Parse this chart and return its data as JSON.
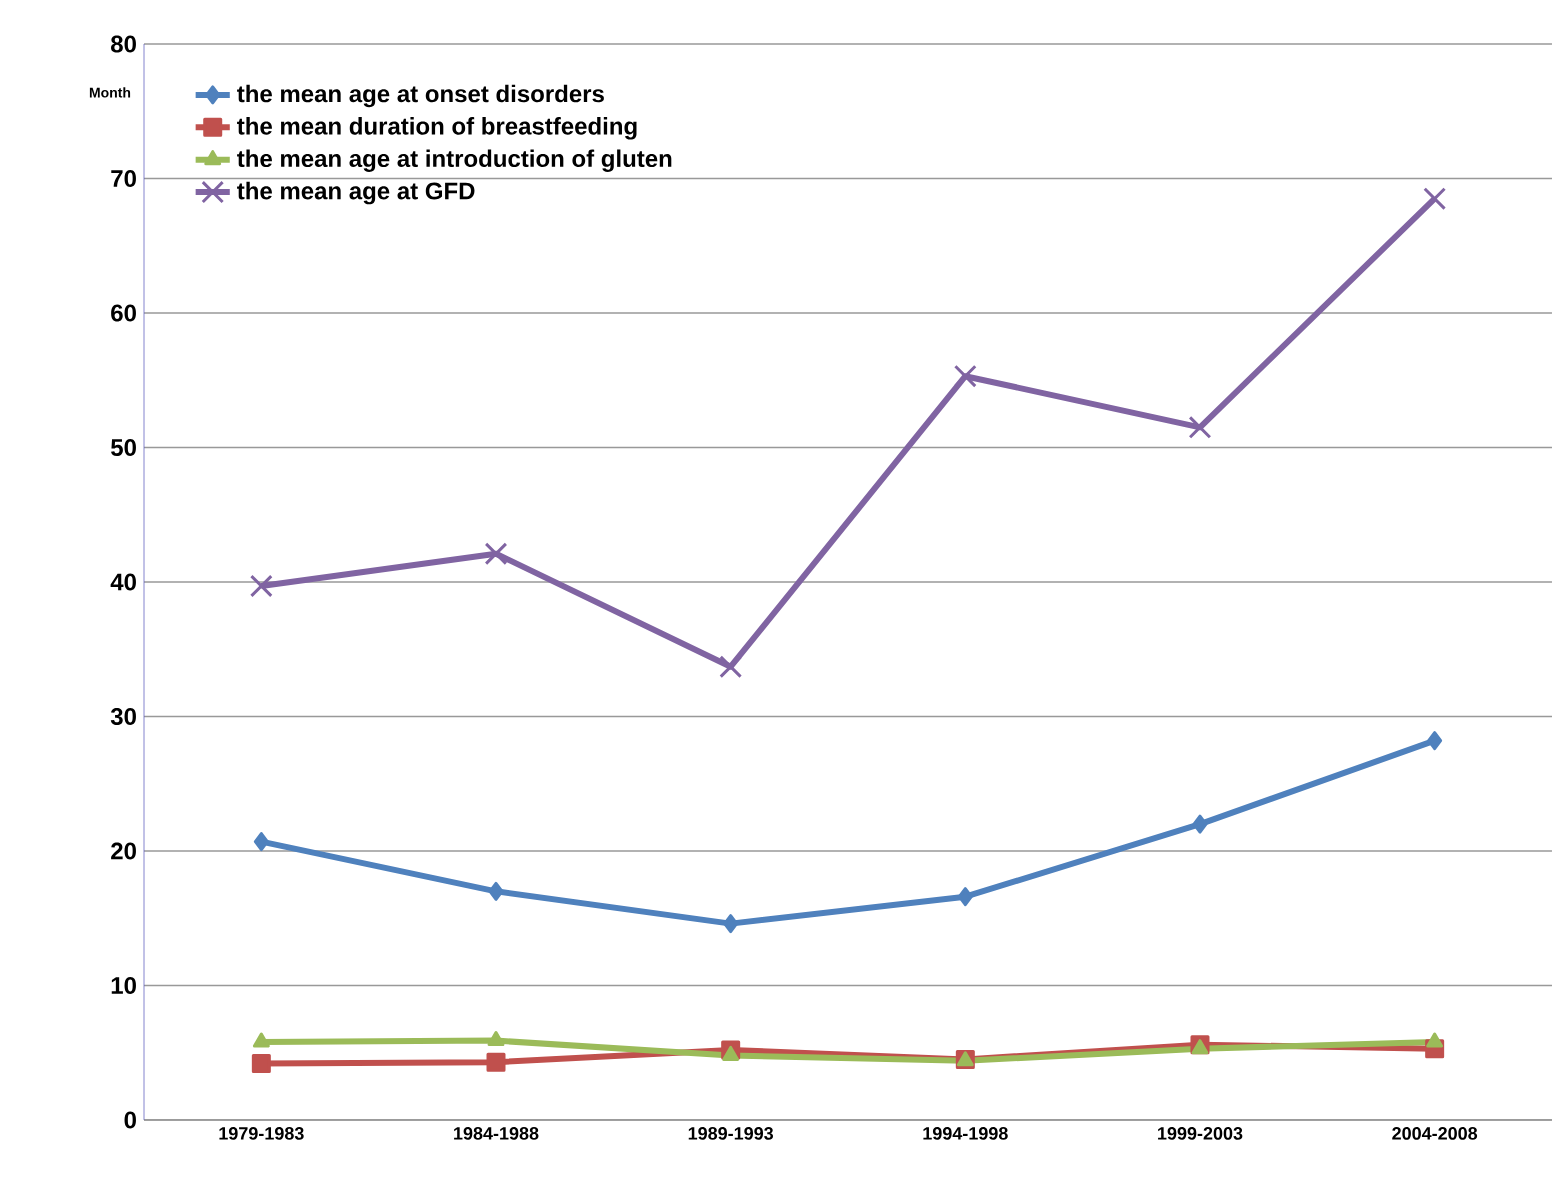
{
  "chart_data": {
    "type": "line",
    "ylabel": "Month",
    "categories": [
      "1979-1983",
      "1984-1988",
      "1989-1993",
      "1994-1998",
      "1999-2003",
      "2004-2008"
    ],
    "series": [
      {
        "name": "the mean age at onset disorders",
        "color": "#4f81bd",
        "marker": "diamond",
        "values": [
          20.7,
          17.0,
          14.6,
          16.6,
          22.0,
          28.2
        ]
      },
      {
        "name": "the mean duration of breastfeeding",
        "color": "#c0504d",
        "marker": "square",
        "values": [
          4.2,
          4.3,
          5.2,
          4.5,
          5.6,
          5.3
        ]
      },
      {
        "name": "the mean age at introduction of gluten",
        "color": "#9bbb59",
        "marker": "triangle",
        "values": [
          5.8,
          5.9,
          4.8,
          4.4,
          5.3,
          5.8
        ]
      },
      {
        "name": "the mean age  at GFD",
        "color": "#8064a2",
        "marker": "cross",
        "values": [
          39.7,
          42.1,
          33.7,
          55.3,
          51.5,
          68.5
        ]
      }
    ],
    "ylim": [
      0,
      80
    ],
    "yticks": [
      0,
      10,
      20,
      30,
      40,
      50,
      60,
      70,
      80
    ],
    "grid": "y",
    "legend": "top left",
    "line_style": "solid"
  }
}
